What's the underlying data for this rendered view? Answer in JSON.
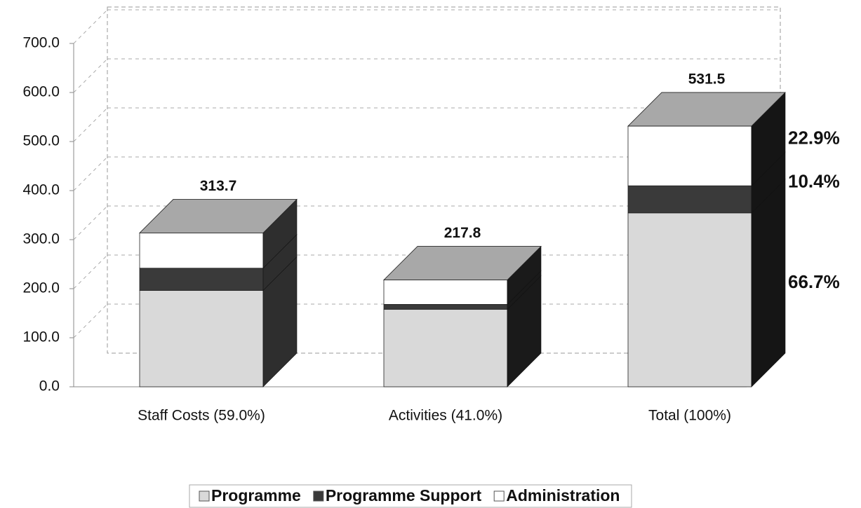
{
  "chart_data": {
    "type": "bar3d_stacked",
    "categories": [
      "Staff Costs (59.0%)",
      "Activities (41.0%)",
      "Total (100%)"
    ],
    "series": [
      {
        "name": "Programme",
        "color": "#d9d9d9",
        "values": [
          196.5,
          158,
          354.5
        ]
      },
      {
        "name": "Programme Support",
        "color": "#3a3a3a",
        "values": [
          45.3,
          10,
          55.3
        ]
      },
      {
        "name": "Administration",
        "color": "#ffffff",
        "values": [
          71.9,
          49.8,
          121.7
        ]
      }
    ],
    "totals": [
      313.7,
      217.8,
      531.5
    ],
    "share_labels": [
      "66.7%",
      "10.4%",
      "22.9%"
    ],
    "ylim": [
      0,
      700
    ],
    "yticks": [
      {
        "value": 0,
        "label": "0.0"
      },
      {
        "value": 100,
        "label": "100.0"
      },
      {
        "value": 200,
        "label": "200.0"
      },
      {
        "value": 300,
        "label": "300.0"
      },
      {
        "value": 400,
        "label": "400.0"
      },
      {
        "value": 500,
        "label": "500.0"
      },
      {
        "value": 600,
        "label": "600.0"
      },
      {
        "value": 700,
        "label": "700.0"
      }
    ],
    "grid": true,
    "legend": "bottom"
  }
}
